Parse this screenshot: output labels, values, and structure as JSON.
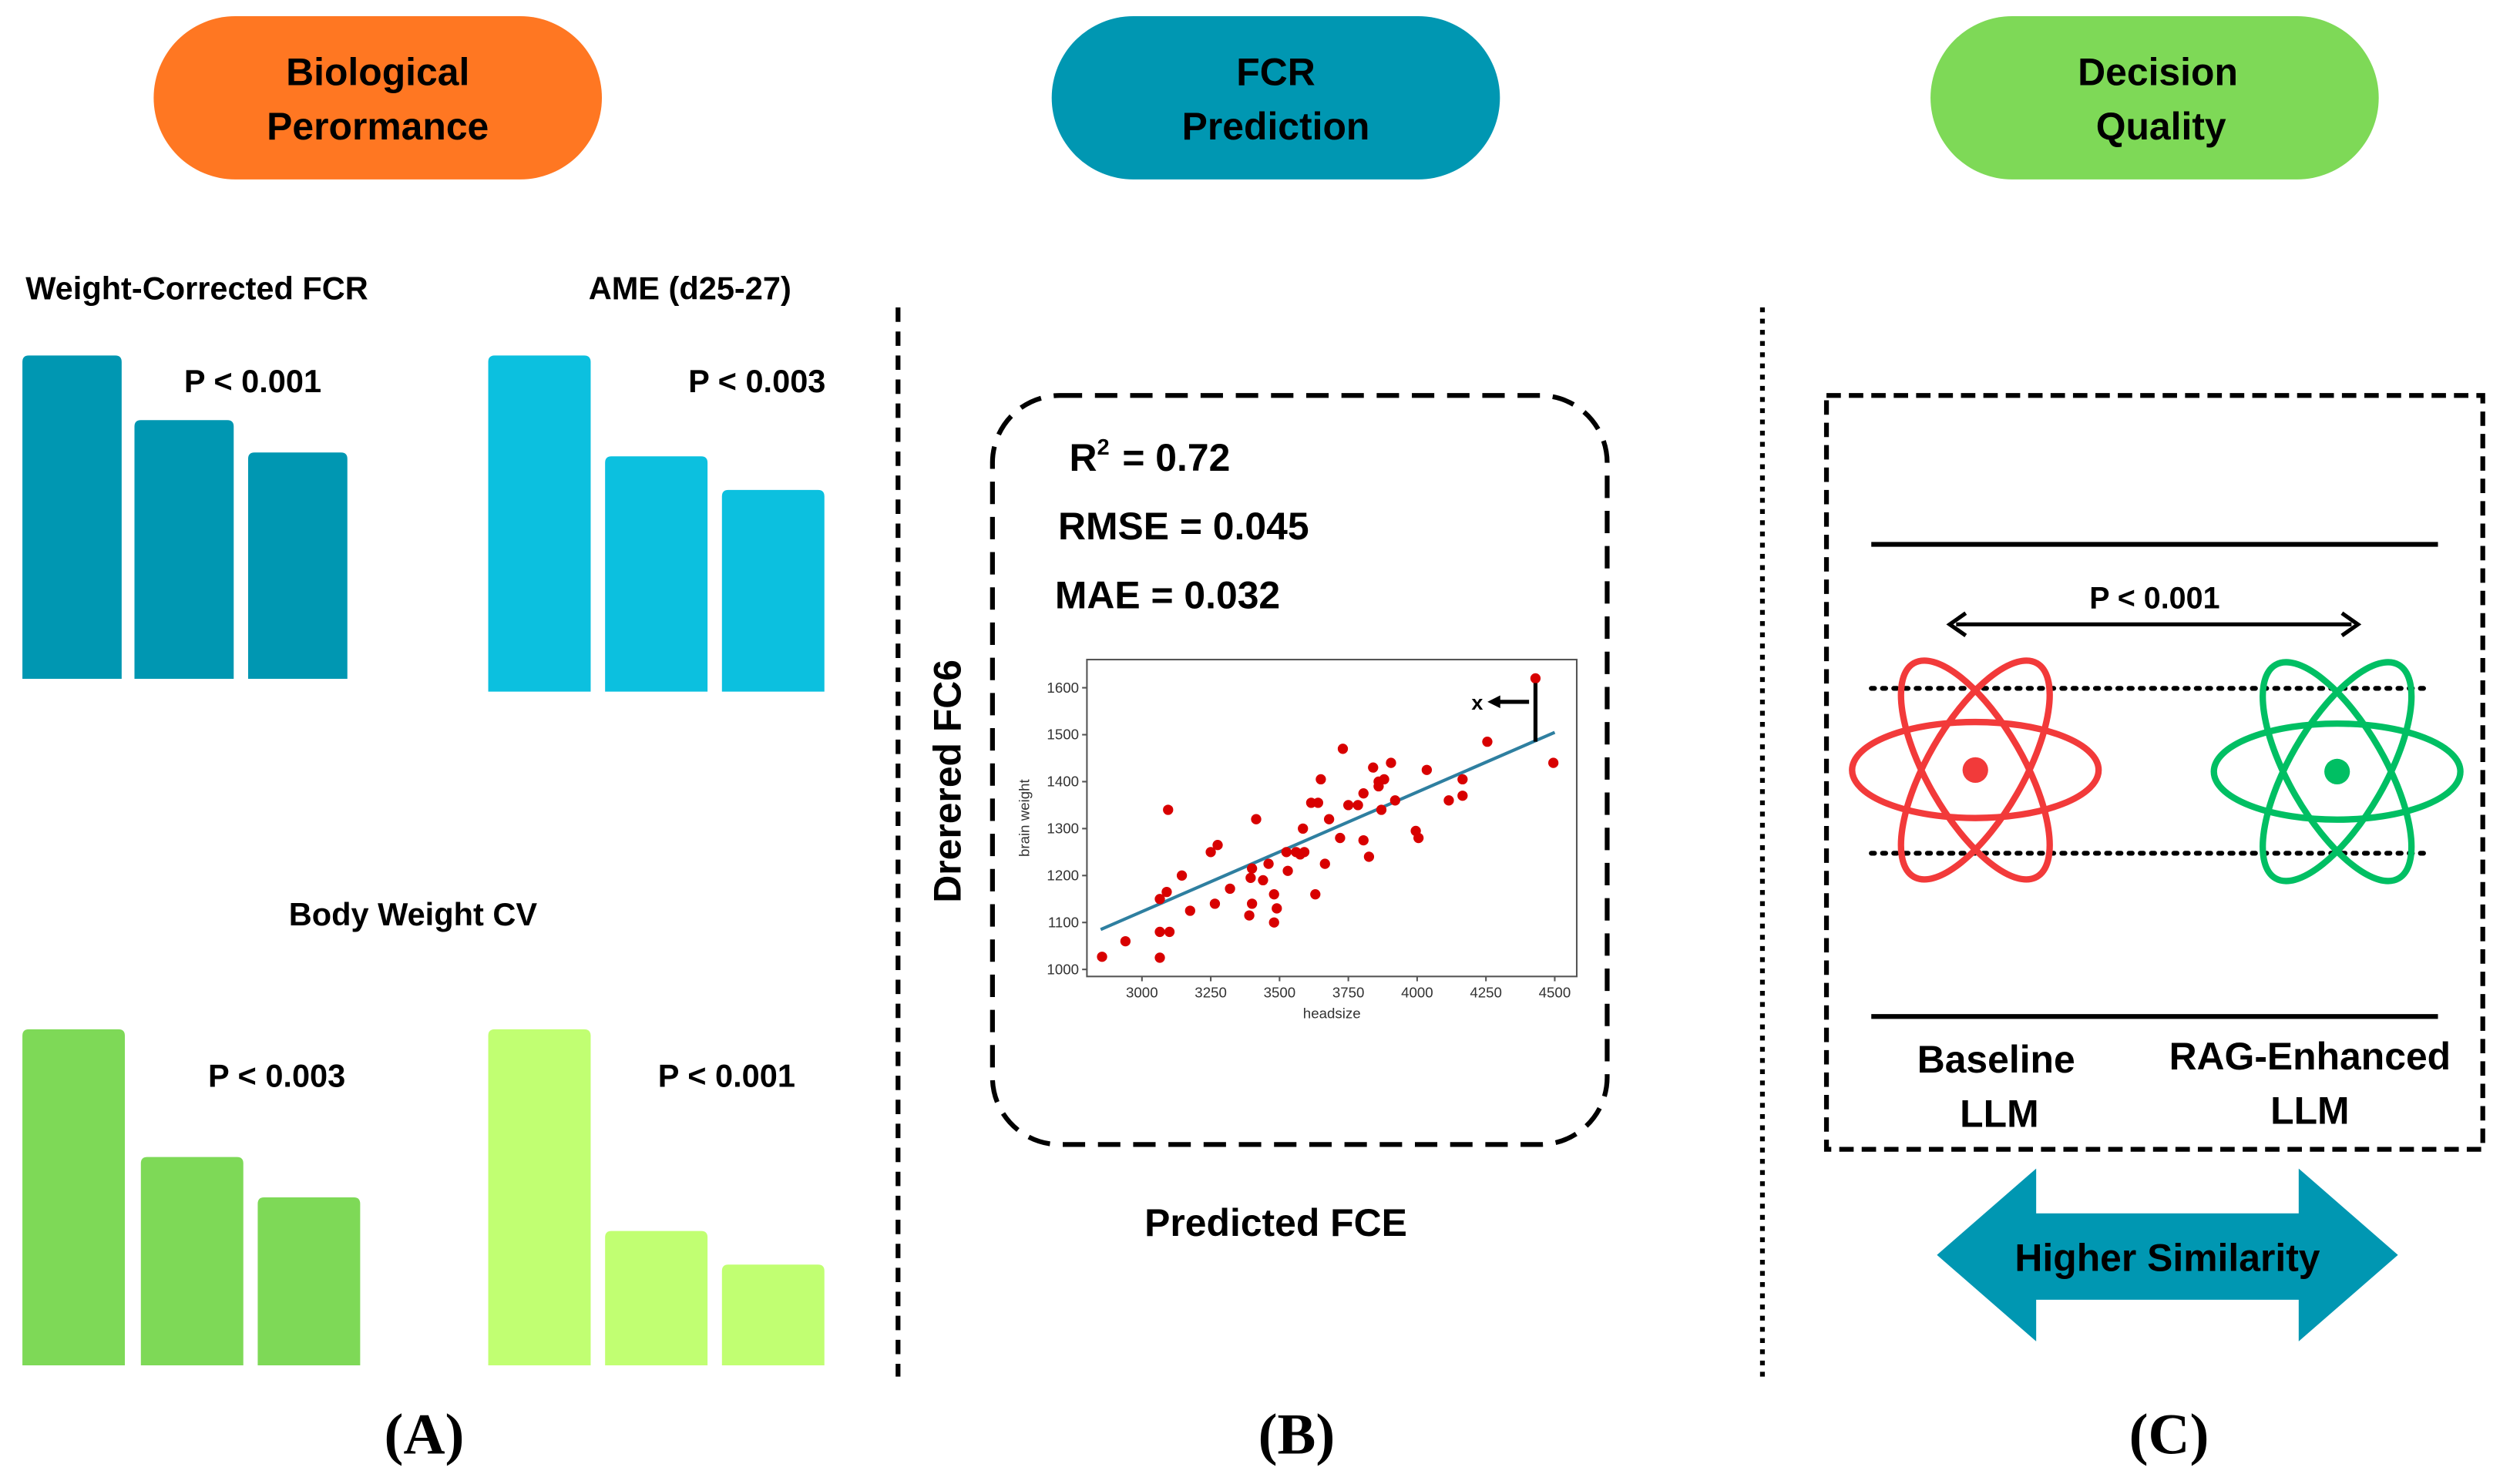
{
  "colors": {
    "orange": "#FF7722",
    "teal": "#0097B2",
    "cyan": "#0CC0DF",
    "green": "#7ED957",
    "lime": "#C1FF72",
    "red": "#F23A3A",
    "atom_green": "#00BF63"
  },
  "header": {
    "pill_a": [
      "Biological",
      "Perormance"
    ],
    "pill_b": [
      "FCR",
      "Prediction"
    ],
    "pill_c": [
      "Decision",
      "Quality"
    ]
  },
  "panel_a": {
    "charts": [
      {
        "title": "Weight-Corrected FCR",
        "p": "P < 0.001",
        "values": [
          100,
          80,
          70
        ]
      },
      {
        "title": "AME (d25-27)",
        "p": "P < 0.003",
        "values": [
          100,
          70,
          60
        ]
      },
      {
        "title": "Body Weight CV",
        "p": "P < 0.003",
        "values": [
          100,
          62,
          50
        ]
      },
      {
        "title": "",
        "p": "P < 0.001",
        "values": [
          100,
          40,
          30
        ]
      }
    ],
    "label": "(A)"
  },
  "panel_b": {
    "metrics": {
      "r2_label": "R",
      "r2_sup": "2",
      "r2_value": "=  0.72",
      "rmse": "RMSE = 0.045",
      "mae": "MAE = 0.032"
    },
    "y_title": "Drerered FC6",
    "x_title": "Predicted FCE",
    "label": "(B)"
  },
  "chart_data": {
    "type": "scatter",
    "xlabel": "headsize",
    "ylabel": "brain weight",
    "xlim": [
      2800,
      4580
    ],
    "ylim": [
      985,
      1660
    ],
    "xticks": [
      "3000",
      "3250",
      "3500",
      "3750",
      "4000",
      "4250",
      "4500"
    ],
    "yticks": [
      "1000",
      "1100",
      "1200",
      "1300",
      "1400",
      "1500",
      "1600"
    ],
    "annotation": "x",
    "fit_line": [
      [
        2850,
        1085
      ],
      [
        4500,
        1505
      ]
    ],
    "points": [
      [
        2855,
        1027
      ],
      [
        2940,
        1060
      ],
      [
        3065,
        1025
      ],
      [
        3065,
        1080
      ],
      [
        3100,
        1080
      ],
      [
        3065,
        1150
      ],
      [
        3090,
        1165
      ],
      [
        3095,
        1340
      ],
      [
        3145,
        1200
      ],
      [
        3175,
        1125
      ],
      [
        3250,
        1250
      ],
      [
        3275,
        1265
      ],
      [
        3265,
        1140
      ],
      [
        3320,
        1172
      ],
      [
        3390,
        1115
      ],
      [
        3395,
        1195
      ],
      [
        3400,
        1140
      ],
      [
        3400,
        1215
      ],
      [
        3415,
        1320
      ],
      [
        3440,
        1190
      ],
      [
        3460,
        1225
      ],
      [
        3480,
        1100
      ],
      [
        3480,
        1160
      ],
      [
        3490,
        1130
      ],
      [
        3525,
        1250
      ],
      [
        3530,
        1210
      ],
      [
        3560,
        1250
      ],
      [
        3575,
        1245
      ],
      [
        3590,
        1250
      ],
      [
        3585,
        1300
      ],
      [
        3615,
        1355
      ],
      [
        3640,
        1355
      ],
      [
        3650,
        1405
      ],
      [
        3630,
        1160
      ],
      [
        3665,
        1225
      ],
      [
        3680,
        1320
      ],
      [
        3720,
        1280
      ],
      [
        3730,
        1470
      ],
      [
        3750,
        1350
      ],
      [
        3785,
        1350
      ],
      [
        3805,
        1375
      ],
      [
        3805,
        1275
      ],
      [
        3825,
        1240
      ],
      [
        3840,
        1430
      ],
      [
        3860,
        1390
      ],
      [
        3860,
        1400
      ],
      [
        3870,
        1340
      ],
      [
        3880,
        1405
      ],
      [
        3905,
        1440
      ],
      [
        3920,
        1360
      ],
      [
        3995,
        1295
      ],
      [
        4005,
        1280
      ],
      [
        4035,
        1425
      ],
      [
        4115,
        1360
      ],
      [
        4165,
        1370
      ],
      [
        4165,
        1405
      ],
      [
        4255,
        1485
      ],
      [
        4430,
        1620
      ],
      [
        4495,
        1440
      ]
    ]
  },
  "panel_c": {
    "p": "P < 0.001",
    "baseline": [
      "Baseline",
      "LLM"
    ],
    "rag": [
      "RAG-Enhanced",
      "LLM"
    ],
    "similarity": "Higher Similarity",
    "label": "(C)"
  }
}
